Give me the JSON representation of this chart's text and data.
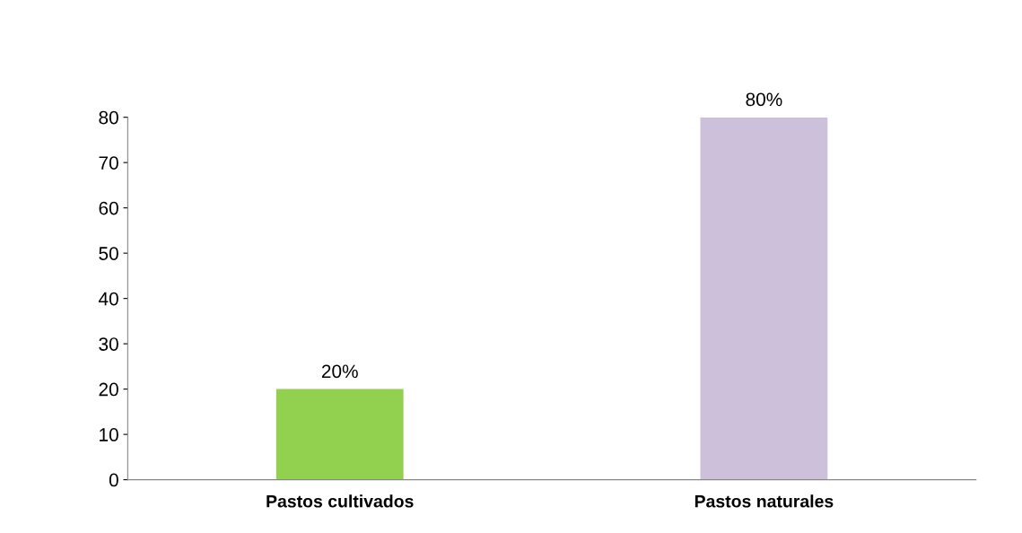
{
  "chart_data": {
    "type": "bar",
    "categories": [
      "Pastos cultivados",
      "Pastos naturales"
    ],
    "values": [
      20,
      80
    ],
    "colors": [
      "#92d050",
      "#ccc0da"
    ],
    "value_labels": [
      "20%",
      "80%"
    ],
    "ylim": [
      0,
      80
    ],
    "yticks": [
      0,
      10,
      20,
      30,
      40,
      50,
      60,
      70,
      80
    ],
    "grid": false,
    "legend": false
  }
}
